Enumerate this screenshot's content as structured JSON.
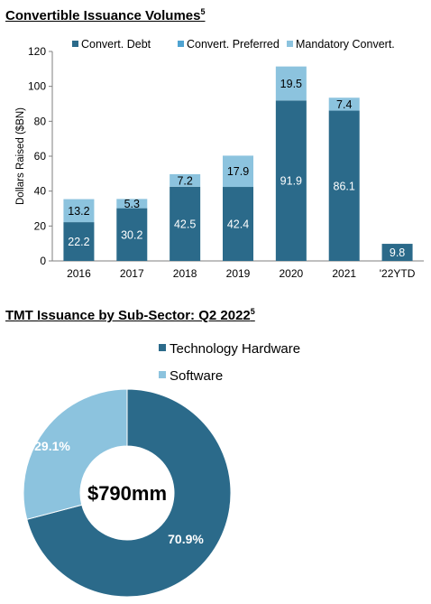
{
  "charts": {
    "bar_title": "Convertible Issuance Volumes",
    "bar_title_sup": "5",
    "pie_title": "TMT Issuance by Sub-Sector: Q2 2022",
    "pie_title_sup": "5"
  },
  "chart_data": [
    {
      "type": "bar",
      "stacked": true,
      "categories": [
        "2016",
        "2017",
        "2018",
        "2019",
        "2020",
        "2021",
        "'22YTD"
      ],
      "series": [
        {
          "name": "Convert. Debt",
          "values": [
            22.2,
            30.2,
            42.5,
            42.4,
            91.9,
            86.1,
            9.8
          ],
          "color": "#2b6a8a"
        },
        {
          "name": "Convert. Preferred",
          "values": [
            0,
            0,
            0,
            0,
            0,
            0,
            0
          ],
          "color": "#4fa3d1"
        },
        {
          "name": "Mandatory Convert.",
          "values": [
            13.2,
            5.3,
            7.2,
            17.9,
            19.5,
            7.4,
            0
          ],
          "color": "#8cc3de"
        }
      ],
      "ylabel": "Dollars Raised ($BN)",
      "ylim": [
        0,
        120
      ],
      "yticks": [
        0,
        20,
        40,
        60,
        80,
        100,
        120
      ],
      "legend_position": "top"
    },
    {
      "type": "pie",
      "donut": true,
      "center_label": "$790mm",
      "slices": [
        {
          "name": "Technology Hardware",
          "value": 70.9,
          "label": "70.9%",
          "color": "#2b6a8a"
        },
        {
          "name": "Software",
          "value": 29.1,
          "label": "29.1%",
          "color": "#8cc3de"
        }
      ],
      "legend_position": "top-right"
    }
  ]
}
